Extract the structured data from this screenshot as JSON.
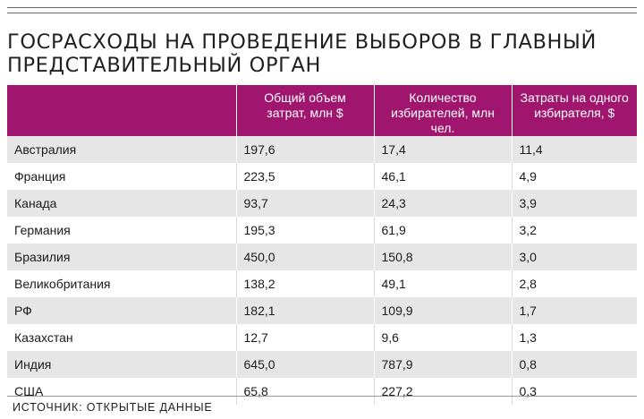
{
  "title": "ГОСРАСХОДЫ НА ПРОВЕДЕНИЕ ВЫБОРОВ В ГЛАВНЫЙ ПРЕДСТАВИТЕЛЬНЫЙ ОРГАН",
  "colors": {
    "header_bg": "#a0166f",
    "row_alt": "#e6e6e6"
  },
  "table": {
    "headers": [
      "",
      "Общий объем затрат, млн $",
      "Количество избирателей, млн чел.",
      "Затраты на одного избирателя, $"
    ],
    "rows": [
      [
        "Австралия",
        "197,6",
        "17,4",
        "11,4"
      ],
      [
        "Франция",
        "223,5",
        "46,1",
        "4,9"
      ],
      [
        "Канада",
        "93,7",
        "24,3",
        "3,9"
      ],
      [
        "Германия",
        "195,3",
        "61,9",
        "3,2"
      ],
      [
        "Бразилия",
        "450,0",
        "150,8",
        "3,0"
      ],
      [
        "Великобритания",
        "138,2",
        "49,1",
        "2,8"
      ],
      [
        "РФ",
        "182,1",
        "109,9",
        "1,7"
      ],
      [
        "Казахстан",
        "12,7",
        "9,6",
        "1,3"
      ],
      [
        "Индия",
        "645,0",
        "787,9",
        "0,8"
      ],
      [
        "США",
        "65,8",
        "227,2",
        "0,3"
      ]
    ]
  },
  "source": "ИСТОЧНИК: ОТКРЫТЫЕ ДАННЫЕ"
}
